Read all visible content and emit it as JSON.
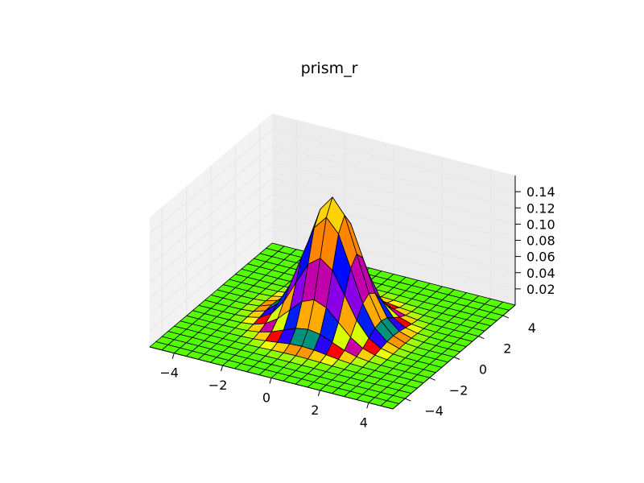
{
  "chart_data": {
    "type": "surface3d",
    "title": "prism_r",
    "colormap": "prism_r",
    "function": "bivariate normal density, mean (0,0), sigma 1",
    "x": {
      "min": -5,
      "max": 5,
      "ticks": [
        -4,
        -2,
        0,
        2,
        4
      ],
      "tick_labels": [
        "−4",
        "−2",
        "0",
        "2",
        "4"
      ]
    },
    "y": {
      "min": -5,
      "max": 5,
      "ticks": [
        -4,
        -2,
        0,
        2,
        4
      ],
      "tick_labels": [
        "−4",
        "−2",
        "0",
        "2",
        "4"
      ]
    },
    "z": {
      "min": 0.0,
      "max": 0.16,
      "ticks": [
        0.02,
        0.04,
        0.06,
        0.08,
        0.1,
        0.12,
        0.14
      ],
      "tick_labels": [
        "0.02",
        "0.04",
        "0.06",
        "0.08",
        "0.10",
        "0.12",
        "0.14"
      ]
    },
    "z_peak": 0.159,
    "grid_cells": 20,
    "grid": true,
    "xlabel": "",
    "ylabel": "",
    "zlabel": ""
  }
}
